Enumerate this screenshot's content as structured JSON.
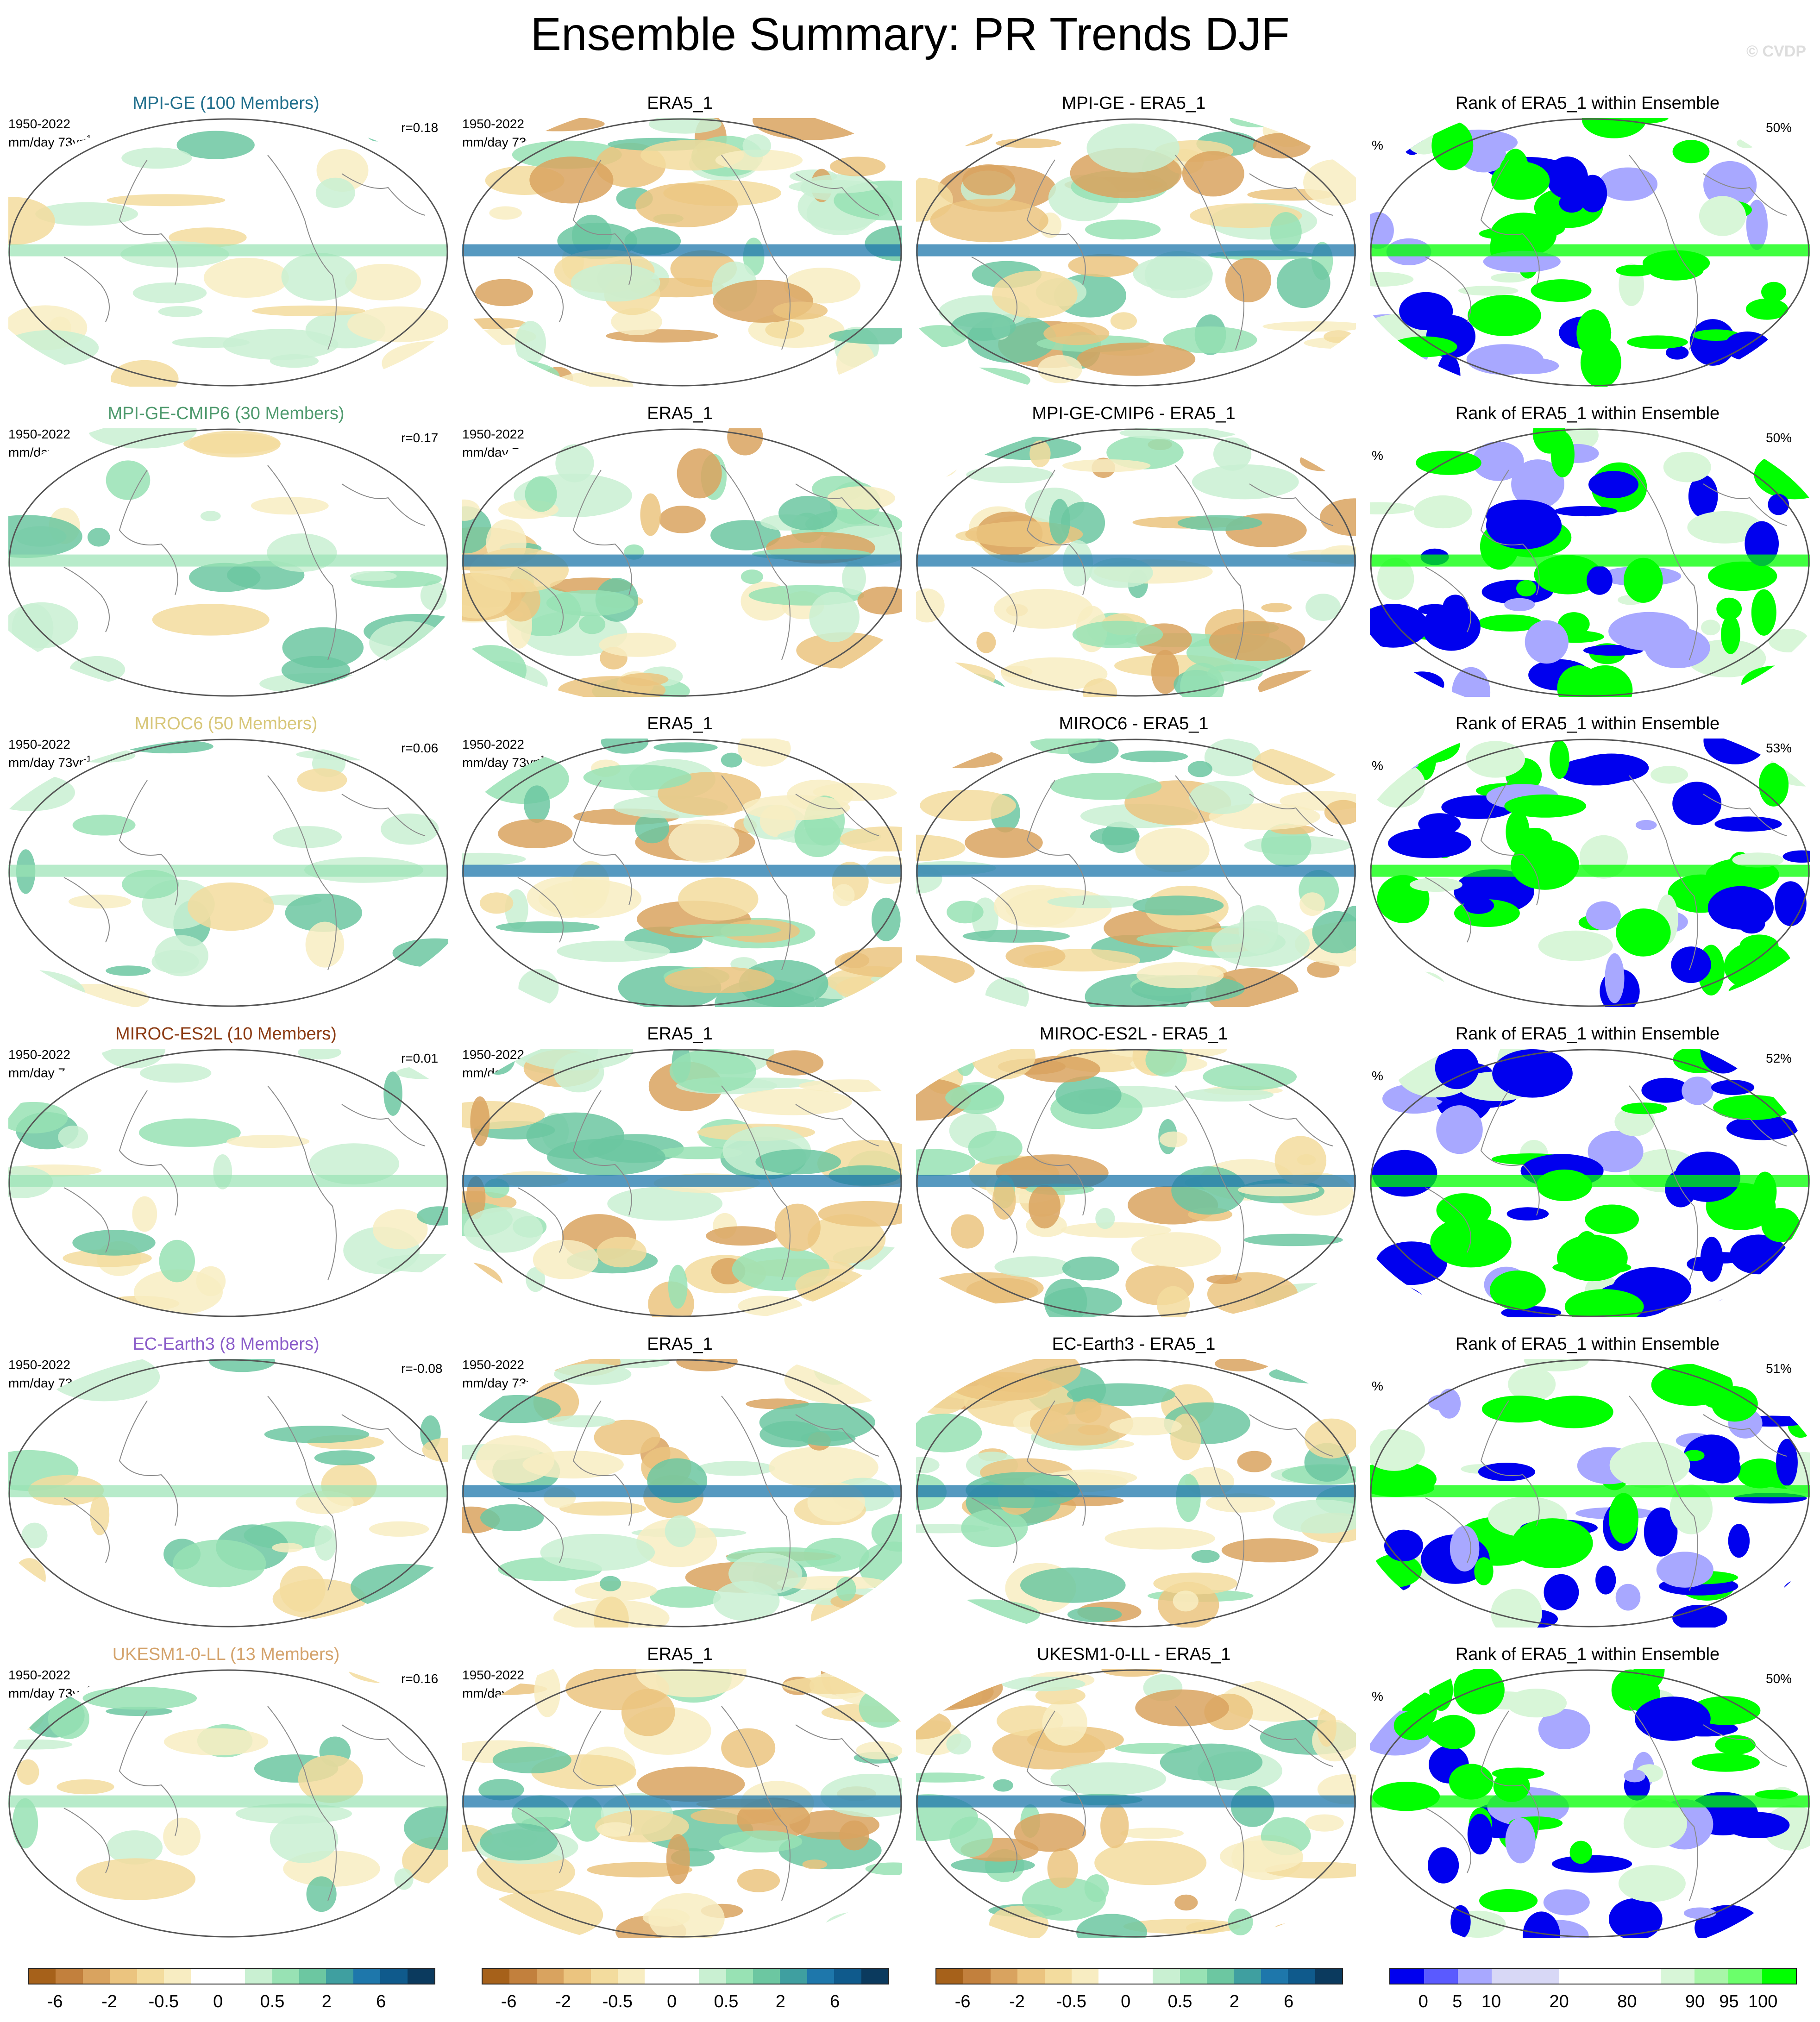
{
  "title": "Ensemble Summary: PR Trends DJF",
  "watermark": "© CVDP",
  "rows": [
    {
      "model_title": "MPI-GE (100 Members)",
      "model_color": "#1f6e8c",
      "period": "1950-2022",
      "units": "mm/day 73yr",
      "units_sup": "-1",
      "r": "r=0.18",
      "era_title": "ERA5_1",
      "diff_title": "MPI-GE - ERA5_1",
      "rank_title": "Rank of ERA5_1 within Ensemble",
      "pct_label": "%",
      "rank_pct": "50%"
    },
    {
      "model_title": "MPI-GE-CMIP6 (30 Members)",
      "model_color": "#4f9a6e",
      "period": "1950-2022",
      "units": "mm/day 73yr",
      "units_sup": "-1",
      "r": "r=0.17",
      "era_title": "ERA5_1",
      "diff_title": "MPI-GE-CMIP6 - ERA5_1",
      "rank_title": "Rank of ERA5_1 within Ensemble",
      "pct_label": "%",
      "rank_pct": "50%"
    },
    {
      "model_title": "MIROC6 (50 Members)",
      "model_color": "#d8c77a",
      "period": "1950-2022",
      "units": "mm/day 73yr",
      "units_sup": "-1",
      "r": "r=0.06",
      "era_title": "ERA5_1",
      "diff_title": "MIROC6 - ERA5_1",
      "rank_title": "Rank of ERA5_1 within Ensemble",
      "pct_label": "%",
      "rank_pct": "53%"
    },
    {
      "model_title": "MIROC-ES2L (10 Members)",
      "model_color": "#8b3a12",
      "period": "1950-2022",
      "units": "mm/day 73yr",
      "units_sup": "-1",
      "r": "r=0.01",
      "era_title": "ERA5_1",
      "diff_title": "MIROC-ES2L - ERA5_1",
      "rank_title": "Rank of ERA5_1 within Ensemble",
      "pct_label": "%",
      "rank_pct": "52%"
    },
    {
      "model_title": "EC-Earth3 (8 Members)",
      "model_color": "#8a5cc9",
      "period": "1950-2022",
      "units": "mm/day 73yr",
      "units_sup": "-1",
      "r": "r=-0.08",
      "era_title": "ERA5_1",
      "diff_title": "EC-Earth3 - ERA5_1",
      "rank_title": "Rank of ERA5_1 within Ensemble",
      "pct_label": "%",
      "rank_pct": "51%"
    },
    {
      "model_title": "UKESM1-0-LL (13 Members)",
      "model_color": "#d4a36c",
      "period": "1950-2022",
      "units": "mm/day 73yr",
      "units_sup": "-1",
      "r": "r=0.16",
      "era_title": "ERA5_1",
      "diff_title": "UKESM1-0-LL - ERA5_1",
      "rank_title": "Rank of ERA5_1 within Ensemble",
      "pct_label": "%",
      "rank_pct": "50%"
    }
  ],
  "colorbar_trend": {
    "colors": [
      "#a6611a",
      "#c2803d",
      "#d9a35f",
      "#ebc47f",
      "#f3dc9e",
      "#f8edc2",
      "#ffffff",
      "#ffffff",
      "#c9f0d2",
      "#98e2b4",
      "#6cc7a1",
      "#3f9fa0",
      "#1e77ab",
      "#0f5a8c",
      "#0b3a5e"
    ],
    "ticks": [
      "-6",
      "-2",
      "-0.5",
      "0",
      "0.5",
      "2",
      "6"
    ]
  },
  "colorbar_rank": {
    "colors": [
      "#0000ee",
      "#5a5aff",
      "#a8a8ff",
      "#d8d8f6",
      "#d8d8f6",
      "#ffffff",
      "#ffffff",
      "#ffffff",
      "#d8f6d8",
      "#a8f6a8",
      "#6bff6b",
      "#00ff00"
    ],
    "ticks": [
      "0",
      "5",
      "10",
      "20",
      "80",
      "90",
      "95",
      "100"
    ]
  }
}
